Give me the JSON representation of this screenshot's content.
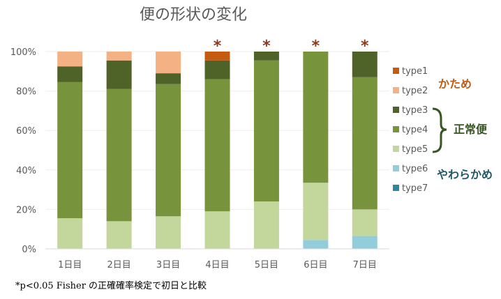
{
  "colors": {
    "type1": "#c55a11",
    "type2": "#f4b183",
    "type3": "#4f6228",
    "type4": "#77933c",
    "type5": "#c3d69b",
    "type6": "#92cddc",
    "type7": "#31859c",
    "star": "#8b3a1d",
    "kata": "#c55a11",
    "seijo": "#375623",
    "yawa": "#215868",
    "axis": "#d9d9d9",
    "text": "#595959"
  },
  "chart_data": {
    "type": "stacked-bar",
    "title": "便の形状の変化",
    "categories": [
      "1日目",
      "2日目",
      "3日目",
      "4日目",
      "5日目",
      "6日目",
      "7日目"
    ],
    "ylim": [
      0,
      100
    ],
    "yticks": [
      "0%",
      "20%",
      "40%",
      "60%",
      "80%",
      "100%"
    ],
    "ytick_values": [
      0,
      20,
      40,
      60,
      80,
      100
    ],
    "series": [
      {
        "name": "type7",
        "values": [
          0,
          0,
          0,
          0,
          0,
          0,
          0
        ]
      },
      {
        "name": "type6",
        "values": [
          0,
          0,
          0,
          0,
          0,
          4.5,
          6.5
        ]
      },
      {
        "name": "type5",
        "values": [
          15.5,
          14,
          16.5,
          19,
          24,
          29,
          13.5
        ]
      },
      {
        "name": "type4",
        "values": [
          69,
          67,
          67,
          67,
          71.5,
          66.5,
          67
        ]
      },
      {
        "name": "type3",
        "values": [
          8,
          14.5,
          5.5,
          9.5,
          4.5,
          0,
          13
        ]
      },
      {
        "name": "type2",
        "values": [
          7.5,
          4.5,
          11,
          0,
          0,
          0,
          0
        ]
      },
      {
        "name": "type1",
        "values": [
          0,
          0,
          0,
          4.5,
          0,
          0,
          0
        ]
      }
    ],
    "significance": [
      false,
      false,
      false,
      true,
      true,
      true,
      true
    ],
    "star_symbol": "*",
    "legend_order": [
      "type1",
      "type2",
      "type3",
      "type4",
      "type5",
      "type6",
      "type7"
    ]
  },
  "annotations": {
    "kata": "かため",
    "seijo": "正常便",
    "yawa": "やわらかめ"
  },
  "footnote": "*p<0.05 Fisher の正確確率検定で初日と比較"
}
